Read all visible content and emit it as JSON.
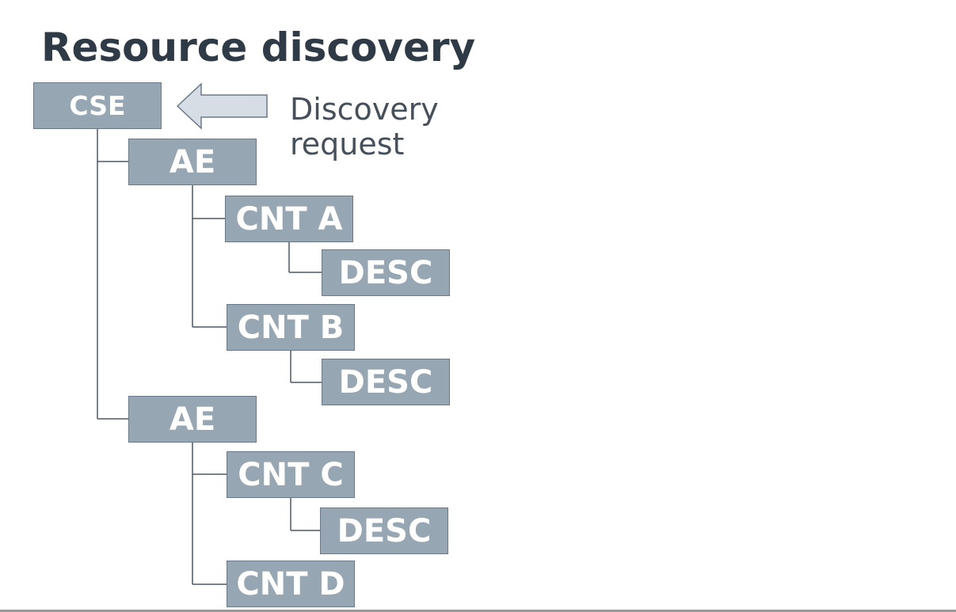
{
  "title": "Resource discovery",
  "callout": {
    "line1": "Discovery",
    "line2": "request"
  },
  "nodes": {
    "cse": "CSE",
    "ae1": "AE",
    "cnt_a": "CNT A",
    "desc_a": "DESC",
    "cnt_b": "CNT B",
    "desc_b": "DESC",
    "ae2": "AE",
    "cnt_c": "CNT C",
    "desc_c": "DESC",
    "cnt_d": "CNT D"
  },
  "colors": {
    "node_fill": "#97a6b3",
    "node_border": "#6b7a88",
    "node_text": "#ffffff",
    "title_text": "#2e3a46",
    "callout_text": "#46505b",
    "connector": "#4d5863",
    "arrow_fill": "#d7dde5",
    "arrow_stroke": "#6b7a88"
  }
}
